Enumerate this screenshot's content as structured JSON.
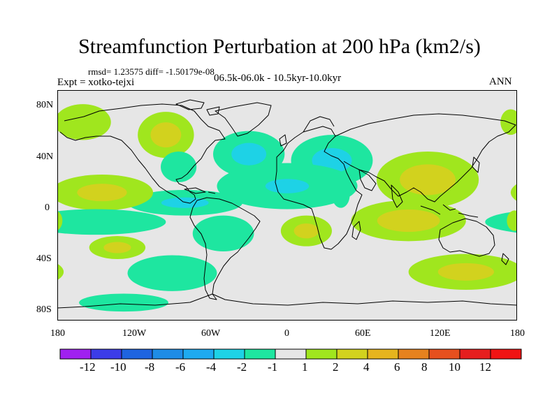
{
  "title": "Streamfunction Perturbation at 200 hPa (km2/s)",
  "stats": "rmsd= 1.23575 diff= -1.50179e-08",
  "experiment": "Expt = xotko-tejxi",
  "period": "06.5k-06.0k - 10.5kyr-10.0kyr",
  "season": "ANN",
  "map": {
    "projection": "cylindrical-equidistant",
    "lon_range": [
      -180,
      180
    ],
    "lat_range": [
      -90,
      90
    ],
    "lat_labels": [
      "80N",
      "40N",
      "0",
      "40S",
      "80S"
    ],
    "lon_labels": [
      "180",
      "120W",
      "60W",
      "0",
      "60E",
      "120E",
      "180"
    ],
    "background_color": "#e6e6e6",
    "coastline_color": "#000000"
  },
  "colorbar": {
    "labels": [
      "-12",
      "-10",
      "-8",
      "-6",
      "-4",
      "-2",
      "-1",
      "1",
      "2",
      "4",
      "6",
      "8",
      "10",
      "12"
    ],
    "colors": [
      "#a020f0",
      "#3c3ce8",
      "#1e64e0",
      "#1e8ce6",
      "#1eaaf0",
      "#1ed2e6",
      "#1ee6a0",
      "#e6e6e6",
      "#a0e61e",
      "#d2d21e",
      "#e6b41e",
      "#e6821e",
      "#e6501e",
      "#e61e1e",
      "#f01414"
    ]
  },
  "chart_data": {
    "type": "contour-map",
    "title": "Streamfunction Perturbation at 200 hPa (km2/s)",
    "units": "km2/s",
    "levels": [
      -12,
      -10,
      -8,
      -6,
      -4,
      -2,
      -1,
      1,
      2,
      4,
      6,
      8,
      10,
      12
    ],
    "anomalies": [
      {
        "lon": -30,
        "lat": 40,
        "rx": 28,
        "ry": 18,
        "value": -3
      },
      {
        "lon": -95,
        "lat": 55,
        "rx": 22,
        "ry": 18,
        "value": 3.5
      },
      {
        "lon": -160,
        "lat": 65,
        "rx": 22,
        "ry": 14,
        "value": 1.5
      },
      {
        "lon": 175,
        "lat": 65,
        "rx": 8,
        "ry": 10,
        "value": 1.5
      },
      {
        "lon": 35,
        "lat": 35,
        "rx": 32,
        "ry": 20,
        "value": -3
      },
      {
        "lon": -85,
        "lat": 30,
        "rx": 14,
        "ry": 12,
        "value": -1.5
      },
      {
        "lon": 0,
        "lat": 15,
        "rx": 55,
        "ry": 18,
        "value": -2
      },
      {
        "lon": -80,
        "lat": 2,
        "rx": 45,
        "ry": 10,
        "value": -2.5
      },
      {
        "lon": -145,
        "lat": 10,
        "rx": 40,
        "ry": 14,
        "value": 3
      },
      {
        "lon": 110,
        "lat": 20,
        "rx": 40,
        "ry": 22,
        "value": 3.5
      },
      {
        "lon": -150,
        "lat": -13,
        "rx": 55,
        "ry": 10,
        "value": -1.5
      },
      {
        "lon": -50,
        "lat": -22,
        "rx": 24,
        "ry": 14,
        "value": -1.5
      },
      {
        "lon": 15,
        "lat": -20,
        "rx": 20,
        "ry": 12,
        "value": 3
      },
      {
        "lon": 95,
        "lat": -12,
        "rx": 45,
        "ry": 16,
        "value": 3.5
      },
      {
        "lon": 178,
        "lat": -12,
        "rx": 6,
        "ry": 8,
        "value": 1.5
      },
      {
        "lon": -133,
        "lat": -33,
        "rx": 22,
        "ry": 9,
        "value": 3
      },
      {
        "lon": -90,
        "lat": -53,
        "rx": 35,
        "ry": 14,
        "value": -1.5
      },
      {
        "lon": 140,
        "lat": -52,
        "rx": 45,
        "ry": 14,
        "value": 3
      },
      {
        "lon": -128,
        "lat": -76,
        "rx": 35,
        "ry": 7,
        "value": -1.5
      },
      {
        "lon": 42,
        "lat": 8,
        "rx": 7,
        "ry": 10,
        "value": -1.5
      }
    ]
  }
}
